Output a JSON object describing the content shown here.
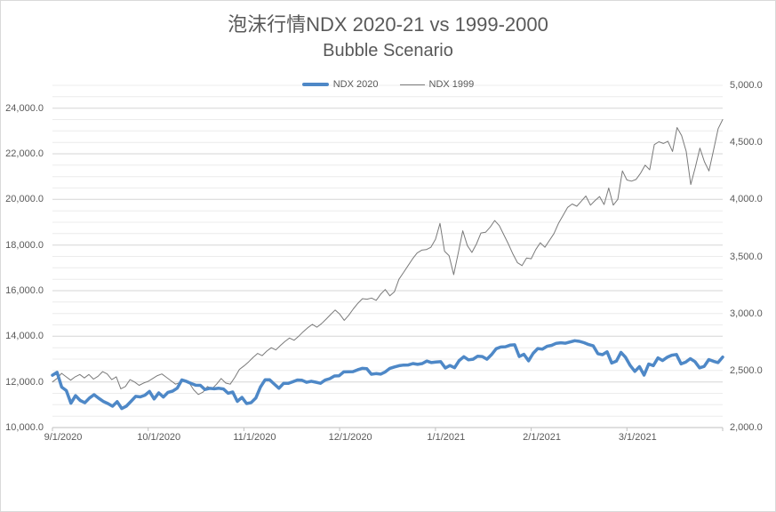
{
  "title": {
    "line1": "泡沫行情NDX 2020-21 vs 1999-2000",
    "line2": "Bubble Scenario"
  },
  "legend": {
    "items": [
      {
        "label": "NDX 2020",
        "color": "#4e88c7"
      },
      {
        "label": "NDX 1999",
        "color": "#7a7a7a"
      }
    ]
  },
  "colors": {
    "title_text": "#595959",
    "axis_text": "#595959",
    "major_gridline": "#d6d6d6",
    "minor_gridline": "#ececec",
    "axis_line": "#bfbfbf",
    "background": "#ffffff",
    "series_blue": "#4e88c7",
    "series_gray": "#7a7a7a"
  },
  "chart_data": {
    "type": "line",
    "title": "泡沫行情NDX 2020-21 vs 1999-2000",
    "subtitle": "Bubble Scenario",
    "legend": [
      "NDX 2020",
      "NDX 1999"
    ],
    "legend_position": "top",
    "grid": "horizontal major + minor gridlines, no vertical gridlines",
    "x_axis": {
      "labels": [
        "9/1/2020",
        "10/1/2020",
        "11/1/2020",
        "12/1/2020",
        "1/1/2021",
        "2/1/2021",
        "3/1/2021"
      ]
    },
    "left_axis": {
      "scale_min": 10000,
      "scale_max": 25000,
      "major_unit": 2000,
      "minor_unit": 500,
      "ticks": [
        {
          "label": "24,000.0",
          "value": 24000
        },
        {
          "label": "22,000.0",
          "value": 22000
        },
        {
          "label": "20,000.0",
          "value": 20000
        },
        {
          "label": "18,000.0",
          "value": 18000
        },
        {
          "label": "16,000.0",
          "value": 16000
        },
        {
          "label": "14,000.0",
          "value": 14000
        },
        {
          "label": "12,000.0",
          "value": 12000
        },
        {
          "label": "10,000.0",
          "value": 10000
        }
      ]
    },
    "right_axis": {
      "scale_min": 2000,
      "scale_max": 5000,
      "major_unit": 500,
      "ticks": [
        {
          "label": "5,000.0",
          "value": 5000
        },
        {
          "label": "4,500.0",
          "value": 4500
        },
        {
          "label": "4,000.0",
          "value": 4000
        },
        {
          "label": "3,500.0",
          "value": 3500
        },
        {
          "label": "3,000.0",
          "value": 3000
        },
        {
          "label": "2,500.0",
          "value": 2500
        },
        {
          "label": "2,000.0",
          "value": 2000
        }
      ]
    },
    "series": [
      {
        "name": "NDX 2020",
        "axis": "left",
        "color": "#4e88c7",
        "stroke_width": 3.5,
        "values": [
          12293,
          12420,
          11771,
          11622,
          11068,
          11400,
          11187,
          11087,
          11294,
          11443,
          11287,
          11147,
          11052,
          10936,
          11132,
          10833,
          10938,
          11151,
          11369,
          11344,
          11418,
          11583,
          11255,
          11521,
          11335,
          11543,
          11598,
          11726,
          12088,
          12024,
          11934,
          11853,
          11852,
          11667,
          11717,
          11700,
          11722,
          11692,
          11503,
          11559,
          11151,
          11320,
          11052,
          11096,
          11295,
          11775,
          12094,
          12091,
          11904,
          11722,
          11938,
          11937,
          12007,
          12083,
          12074,
          11983,
          12028,
          11986,
          11940,
          12080,
          12142,
          12258,
          12268,
          12438,
          12444,
          12449,
          12528,
          12594,
          12582,
          12338,
          12364,
          12340,
          12440,
          12595,
          12658,
          12711,
          12738,
          12742,
          12807,
          12771,
          12804,
          12915,
          12850,
          12870,
          12888,
          12609,
          12719,
          12623,
          12939,
          13105,
          12968,
          12998,
          13128,
          13112,
          12998,
          13197,
          13457,
          13530,
          13543,
          13612,
          13626,
          13112,
          13211,
          12925,
          13254,
          13465,
          13436,
          13561,
          13603,
          13692,
          13718,
          13698,
          13753,
          13807,
          13781,
          13720,
          13638,
          13580,
          13237,
          13194,
          13320,
          12828,
          12909,
          13296,
          13075,
          12718,
          12464,
          12668,
          12299,
          12787,
          12714,
          13053,
          12937,
          13082,
          13172,
          13202,
          12789,
          12867,
          13018,
          12890,
          12618,
          12680,
          12979,
          12905,
          12849,
          13091
        ]
      },
      {
        "name": "NDX 1999",
        "axis": "right",
        "color": "#7a7a7a",
        "stroke_width": 1,
        "values": [
          2400,
          2430,
          2475,
          2445,
          2415,
          2445,
          2465,
          2435,
          2465,
          2425,
          2450,
          2490,
          2470,
          2420,
          2445,
          2340,
          2360,
          2420,
          2400,
          2370,
          2390,
          2405,
          2430,
          2455,
          2470,
          2440,
          2410,
          2380,
          2395,
          2420,
          2390,
          2330,
          2290,
          2310,
          2360,
          2340,
          2380,
          2430,
          2390,
          2380,
          2440,
          2510,
          2540,
          2575,
          2615,
          2650,
          2630,
          2670,
          2700,
          2680,
          2720,
          2755,
          2785,
          2765,
          2800,
          2840,
          2875,
          2905,
          2880,
          2910,
          2950,
          2990,
          3030,
          2995,
          2940,
          2985,
          3040,
          3090,
          3130,
          3125,
          3135,
          3115,
          3170,
          3210,
          3155,
          3190,
          3300,
          3360,
          3420,
          3480,
          3530,
          3555,
          3560,
          3580,
          3650,
          3790,
          3546,
          3507,
          3340,
          3529,
          3725,
          3595,
          3535,
          3609,
          3706,
          3712,
          3756,
          3815,
          3770,
          3690,
          3610,
          3520,
          3445,
          3420,
          3486,
          3480,
          3560,
          3620,
          3580,
          3640,
          3700,
          3790,
          3860,
          3930,
          3960,
          3940,
          3985,
          4030,
          3950,
          3990,
          4025,
          3955,
          4100,
          3950,
          4000,
          4250,
          4170,
          4160,
          4175,
          4230,
          4300,
          4260,
          4480,
          4505,
          4490,
          4510,
          4420,
          4630,
          4560,
          4420,
          4130,
          4280,
          4450,
          4330,
          4250,
          4430,
          4620,
          4700
        ]
      }
    ]
  }
}
